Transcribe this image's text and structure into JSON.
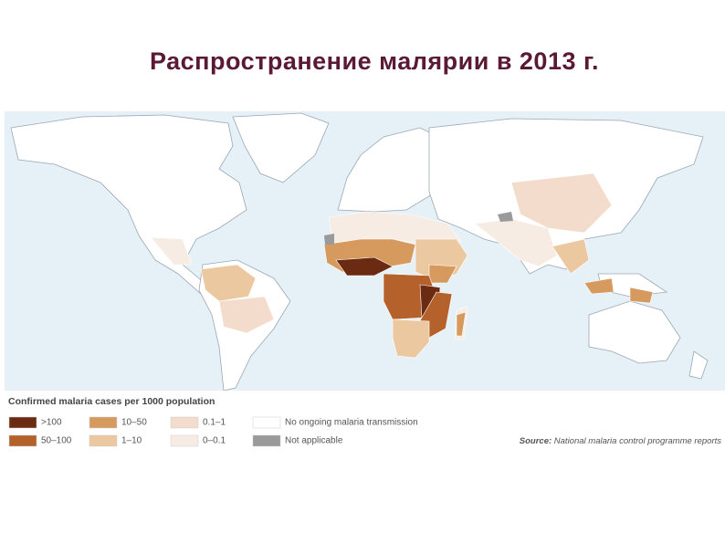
{
  "title": "Распространение малярии в 2013 г.",
  "legend": {
    "title": "Confirmed malaria cases per 1000 population",
    "items": [
      {
        "label": ">100",
        "color": "#6b2a12"
      },
      {
        "label": "50–100",
        "color": "#b5612b"
      },
      {
        "label": "10–50",
        "color": "#d69a5e"
      },
      {
        "label": "1–10",
        "color": "#ecc8a0"
      },
      {
        "label": "0.1–1",
        "color": "#f3dccb"
      },
      {
        "label": "0–0.1",
        "color": "#f6ece4"
      },
      {
        "label": "No ongoing malaria transmission",
        "color": "#ffffff"
      },
      {
        "label": "Not applicable",
        "color": "#9a9a9a"
      }
    ]
  },
  "source": {
    "label": "Source:",
    "text": "National malaria control programme reports"
  }
}
